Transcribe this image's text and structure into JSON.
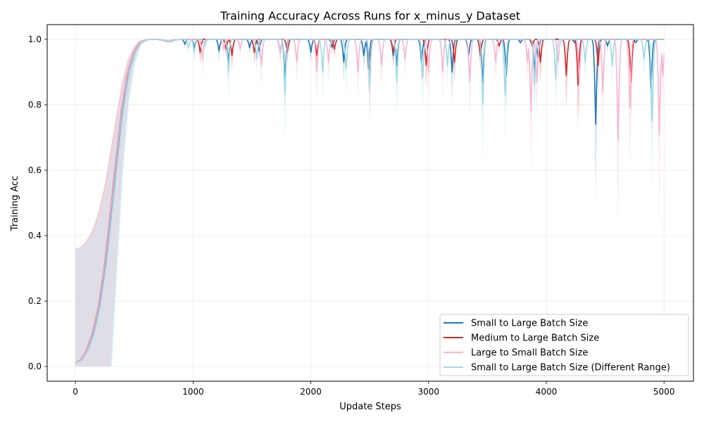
{
  "chart_data": {
    "type": "line",
    "title": "Training Accuracy Across Runs for x_minus_y Dataset",
    "xlabel": "Update Steps",
    "ylabel": "Training Acc",
    "xlim": [
      -240,
      5250
    ],
    "ylim": [
      -0.045,
      1.045
    ],
    "xticks": [
      0,
      1000,
      2000,
      3000,
      4000,
      5000
    ],
    "yticks": [
      0.0,
      0.2,
      0.4,
      0.6,
      0.8,
      1.0
    ],
    "xtick_labels": [
      "0",
      "1000",
      "2000",
      "3000",
      "4000",
      "5000"
    ],
    "ytick_labels": [
      "0.0",
      "0.2",
      "0.4",
      "0.6",
      "0.8",
      "1.0"
    ],
    "grid": true,
    "legend_position": "lower-right",
    "base_curve": {
      "x": [
        0,
        50,
        100,
        150,
        200,
        250,
        300,
        350,
        400,
        450,
        500,
        550,
        600,
        650,
        700,
        750,
        800,
        850,
        900
      ],
      "y": [
        0.01,
        0.02,
        0.05,
        0.1,
        0.18,
        0.3,
        0.46,
        0.63,
        0.79,
        0.9,
        0.96,
        0.99,
        0.998,
        1.0,
        1.0,
        0.997,
        0.994,
        0.998,
        1.0
      ]
    },
    "series": [
      {
        "name": "Small to Large Batch Size",
        "color": "#1f77b4",
        "band_color": "#aec7e8",
        "dips": [
          [
            930,
            0.985
          ],
          [
            1010,
            0.975
          ],
          [
            1220,
            0.965
          ],
          [
            1300,
            0.93
          ],
          [
            1480,
            0.975
          ],
          [
            1560,
            0.965
          ],
          [
            1740,
            0.96
          ],
          [
            1780,
            0.88
          ],
          [
            2000,
            0.96
          ],
          [
            2180,
            0.975
          ],
          [
            2280,
            0.93
          ],
          [
            2450,
            0.95
          ],
          [
            2490,
            0.91
          ],
          [
            2700,
            0.95
          ],
          [
            2730,
            0.92
          ],
          [
            2940,
            0.93
          ],
          [
            3200,
            0.9
          ],
          [
            3340,
            0.95
          ],
          [
            3460,
            0.87
          ],
          [
            3660,
            0.89
          ],
          [
            3780,
            0.99
          ],
          [
            3900,
            0.9
          ],
          [
            3930,
            0.94
          ],
          [
            4240,
            0.99
          ],
          [
            4420,
            0.74
          ],
          [
            4520,
            0.98
          ],
          [
            4760,
            0.99
          ],
          [
            4890,
            0.85
          ]
        ]
      },
      {
        "name": "Medium to Large Batch Size",
        "color": "#d62728",
        "band_color": "#ff9896",
        "dips": [
          [
            1060,
            0.96
          ],
          [
            1280,
            0.97
          ],
          [
            1330,
            0.95
          ],
          [
            1520,
            0.96
          ],
          [
            1800,
            0.96
          ],
          [
            2050,
            0.95
          ],
          [
            2200,
            0.97
          ],
          [
            2500,
            0.88
          ],
          [
            2700,
            0.96
          ],
          [
            2980,
            0.92
          ],
          [
            3220,
            0.93
          ],
          [
            3440,
            0.95
          ],
          [
            3600,
            0.98
          ],
          [
            3880,
            0.98
          ],
          [
            3950,
            0.93
          ],
          [
            4170,
            0.89
          ],
          [
            4270,
            0.86
          ],
          [
            4440,
            0.92
          ],
          [
            4720,
            0.87
          ]
        ]
      },
      {
        "name": "Large to Small Batch Size",
        "color": "#f7b6d2",
        "band_color": "#fbd5e6",
        "dips": [
          [
            1080,
            0.94
          ],
          [
            1260,
            0.97
          ],
          [
            1400,
            0.97
          ],
          [
            1580,
            0.92
          ],
          [
            1740,
            0.96
          ],
          [
            1880,
            0.93
          ],
          [
            2050,
            0.9
          ],
          [
            2150,
            0.93
          ],
          [
            2400,
            0.9
          ],
          [
            2600,
            0.92
          ],
          [
            2800,
            0.94
          ],
          [
            3000,
            0.9
          ],
          [
            3120,
            0.9
          ],
          [
            3350,
            0.87
          ],
          [
            3570,
            0.93
          ],
          [
            3840,
            0.93
          ],
          [
            3870,
            0.78
          ],
          [
            3920,
            0.87
          ],
          [
            4100,
            0.93
          ],
          [
            4280,
            0.87
          ],
          [
            4480,
            0.84
          ],
          [
            4610,
            0.69
          ],
          [
            4710,
            0.79
          ],
          [
            4960,
            0.71
          ],
          [
            4990,
            0.89
          ]
        ]
      },
      {
        "name": "Small to Large Batch Size (Different Range)",
        "color": "#9edae5",
        "band_color": "#cdeef4",
        "dips": [
          [
            960,
            0.975
          ],
          [
            1010,
            0.96
          ],
          [
            1100,
            0.98
          ],
          [
            1300,
            0.9
          ],
          [
            1540,
            0.94
          ],
          [
            1780,
            0.83
          ],
          [
            2100,
            0.9
          ],
          [
            2300,
            0.91
          ],
          [
            2500,
            0.86
          ],
          [
            2730,
            0.87
          ],
          [
            2950,
            0.88
          ],
          [
            3160,
            0.92
          ],
          [
            3460,
            0.8
          ],
          [
            3650,
            0.83
          ],
          [
            3900,
            0.86
          ],
          [
            4080,
            0.88
          ],
          [
            4330,
            0.93
          ],
          [
            4560,
            0.92
          ],
          [
            4830,
            0.94
          ],
          [
            4900,
            0.75
          ]
        ]
      }
    ]
  }
}
